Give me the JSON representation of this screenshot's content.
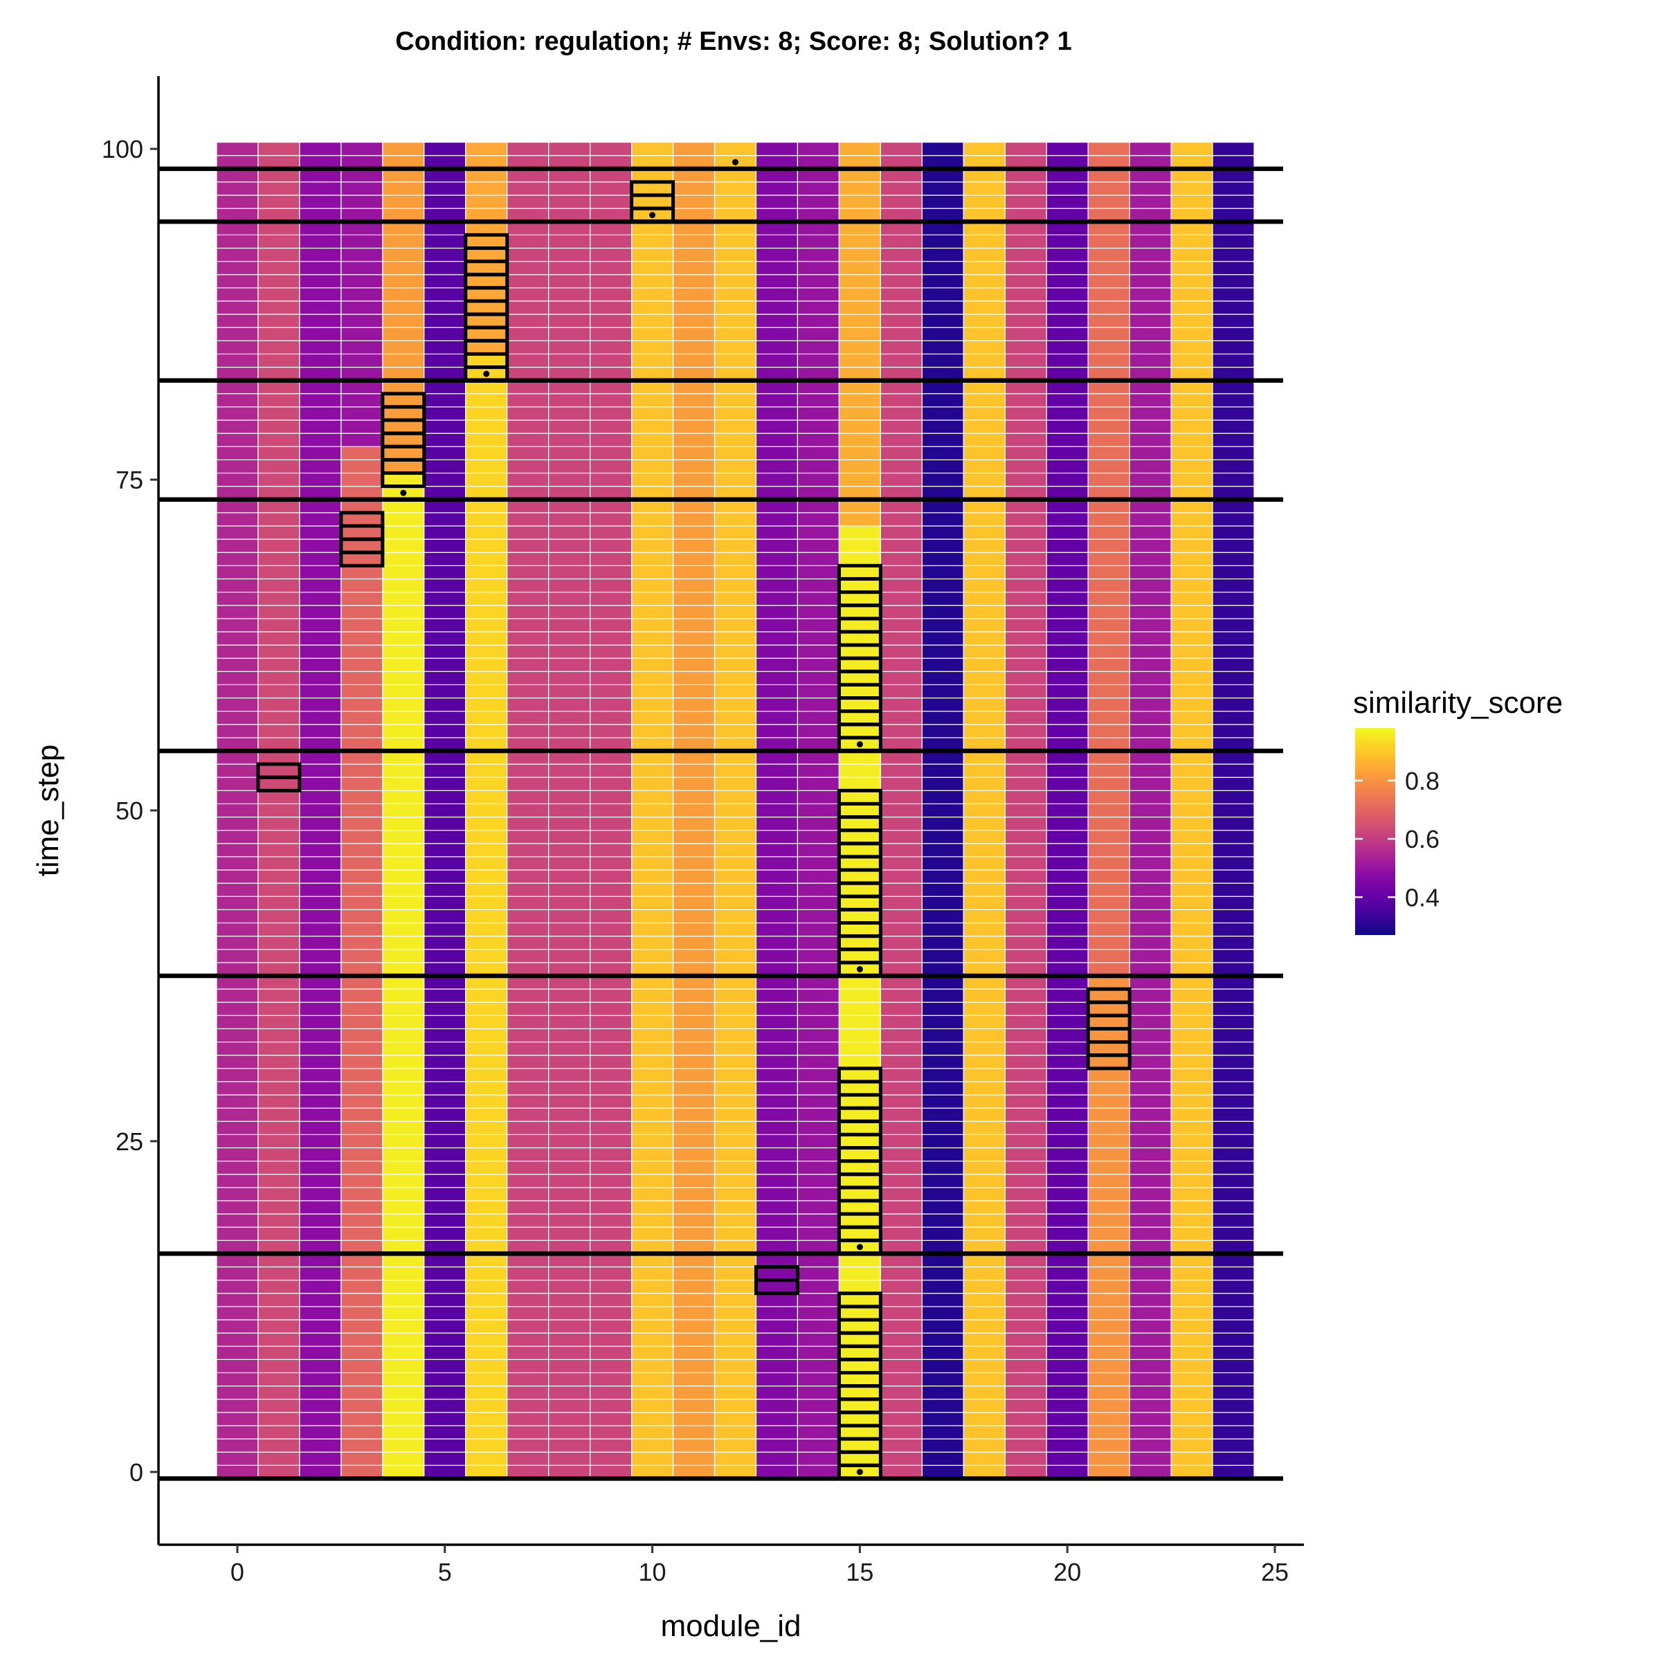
{
  "chart_data": {
    "type": "heatmap",
    "title": "Condition: regulation; # Envs: 8; Score: 8; Solution? 1",
    "xlabel": "module_id",
    "ylabel": "time_step",
    "xlim": [
      -1.9,
      25.7
    ],
    "ylim": [
      -5.5,
      105.5
    ],
    "x_ticks": [
      0,
      5,
      10,
      15,
      20,
      25
    ],
    "y_ticks": [
      0,
      25,
      50,
      75,
      100
    ],
    "n_modules": 25,
    "n_time_steps": 101,
    "legend": {
      "title": "similarity_score",
      "position": "right",
      "ticks": [
        0.4,
        0.6,
        0.8
      ],
      "range": [
        0.27,
        0.98
      ]
    },
    "base_scores": [
      0.55,
      0.63,
      0.48,
      0.5,
      0.82,
      0.38,
      0.84,
      0.62,
      0.62,
      0.62,
      0.89,
      0.82,
      0.89,
      0.46,
      0.5,
      0.85,
      0.62,
      0.3,
      0.89,
      0.62,
      0.4,
      0.72,
      0.52,
      0.89,
      0.32
    ],
    "score_segments": [
      {
        "module": 3,
        "from": 0,
        "to": 77,
        "value": 0.7
      },
      {
        "module": 4,
        "from": 0,
        "to": 75,
        "value": 0.96
      },
      {
        "module": 6,
        "from": 0,
        "to": 84,
        "value": 0.92
      },
      {
        "module": 15,
        "from": 0,
        "to": 71,
        "value": 0.96
      },
      {
        "module": 21,
        "from": 0,
        "to": 37,
        "value": 0.8
      }
    ],
    "env_boundaries": [
      -0.5,
      16.5,
      37.5,
      54.5,
      73.5,
      82.5,
      94.5,
      98.5
    ],
    "highlight_boxes": [
      {
        "module": 15,
        "from": 0,
        "to": 13
      },
      {
        "module": 13,
        "from": 14,
        "to": 15
      },
      {
        "module": 15,
        "from": 17,
        "to": 30
      },
      {
        "module": 21,
        "from": 31,
        "to": 36
      },
      {
        "module": 15,
        "from": 38,
        "to": 51
      },
      {
        "module": 1,
        "from": 52,
        "to": 53
      },
      {
        "module": 15,
        "from": 55,
        "to": 68
      },
      {
        "module": 3,
        "from": 69,
        "to": 72
      },
      {
        "module": 4,
        "from": 75,
        "to": 81
      },
      {
        "module": 6,
        "from": 83,
        "to": 93
      },
      {
        "module": 10,
        "from": 95,
        "to": 97
      }
    ],
    "points": [
      {
        "x": 15,
        "y": 0
      },
      {
        "x": 15,
        "y": 17
      },
      {
        "x": 15,
        "y": 38
      },
      {
        "x": 15,
        "y": 55
      },
      {
        "x": 4,
        "y": 74
      },
      {
        "x": 6,
        "y": 83
      },
      {
        "x": 10,
        "y": 95
      },
      {
        "x": 12,
        "y": 99
      }
    ]
  }
}
